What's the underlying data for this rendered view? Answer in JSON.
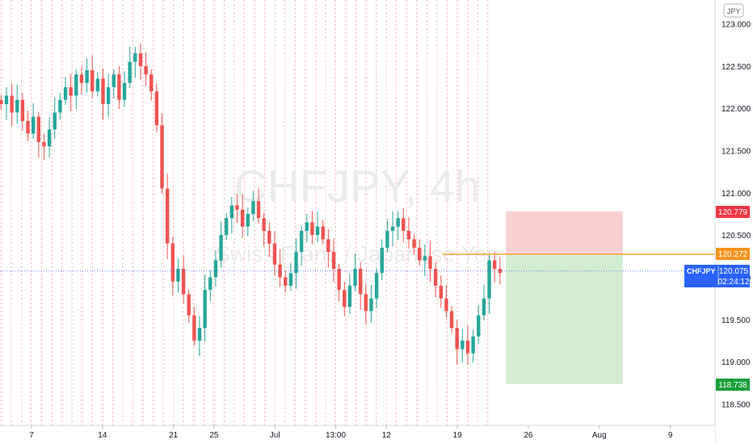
{
  "watermark": {
    "symbol": "CHFJPY, 4h",
    "description": "Swiss Franc / Japanese Yen"
  },
  "currency_badge": "JPY",
  "price_tags": {
    "stop_loss": "120.779",
    "entry": "120.272",
    "current_symbol": "CHFJPY",
    "current_price": "120.075",
    "countdown": "02:24:12",
    "take_profit": "118.738"
  },
  "colors": {
    "up": "#26a69a",
    "down": "#ef5350",
    "stop_zone": "#f9c8c8",
    "target_zone": "#cdebcb",
    "entry_line": "#f7a33c",
    "stop_tag": "#f23645",
    "entry_tag": "#f7931e",
    "current_tag": "#2962ff",
    "target_tag": "#1b9e3a",
    "session_grid": "#f5a0a0"
  },
  "chart_data": {
    "type": "candlestick",
    "symbol": "CHFJPY",
    "interval": "4h",
    "y_range": [
      118.35,
      123.15
    ],
    "y_ticks": [
      123.0,
      122.5,
      122.0,
      121.5,
      121.0,
      120.5,
      120.0,
      119.5,
      119.0,
      118.5
    ],
    "y_tick_labels": [
      "123.000",
      "122.500",
      "122.000",
      "121.500",
      "121.000",
      "120.500",
      "120.000",
      "119.500",
      "119.000",
      "118.500"
    ],
    "x_labels": [
      "7",
      "14",
      "21",
      "25",
      "Jul",
      "13:00",
      "12",
      "19",
      "26",
      "Aug",
      "9"
    ],
    "x_days_from_jun7": [
      0,
      7,
      14,
      18,
      24,
      30,
      35,
      42,
      49,
      56,
      63
    ],
    "position": {
      "side": "short",
      "entry": 120.272,
      "stop": 120.779,
      "target": 118.738,
      "start_day": 46.8,
      "end_day": 58.3
    },
    "current_price": 120.075,
    "candles_approx_closes": [
      122.05,
      122.15,
      121.95,
      122.1,
      121.85,
      121.7,
      121.9,
      121.6,
      121.55,
      121.75,
      121.95,
      122.1,
      122.25,
      122.15,
      122.4,
      122.3,
      122.45,
      122.2,
      122.35,
      122.05,
      122.25,
      122.4,
      122.1,
      122.3,
      122.55,
      122.65,
      122.5,
      122.4,
      122.2,
      121.8,
      121.05,
      120.4,
      119.95,
      120.1,
      119.8,
      119.55,
      119.25,
      119.4,
      119.85,
      120.0,
      120.2,
      120.5,
      120.7,
      120.85,
      120.8,
      120.6,
      120.75,
      120.9,
      120.7,
      120.55,
      120.4,
      120.15,
      120.0,
      119.9,
      120.05,
      120.3,
      120.55,
      120.65,
      120.5,
      120.6,
      120.45,
      120.3,
      120.1,
      119.85,
      119.65,
      119.9,
      120.1,
      119.8,
      119.6,
      119.75,
      120.05,
      120.35,
      120.55,
      120.6,
      120.7,
      120.55,
      120.45,
      120.35,
      120.2,
      120.25,
      120.1,
      119.9,
      119.75,
      119.6,
      119.4,
      119.15,
      119.25,
      119.1,
      119.3,
      119.55,
      119.75,
      120.2,
      120.1,
      120.05
    ]
  }
}
